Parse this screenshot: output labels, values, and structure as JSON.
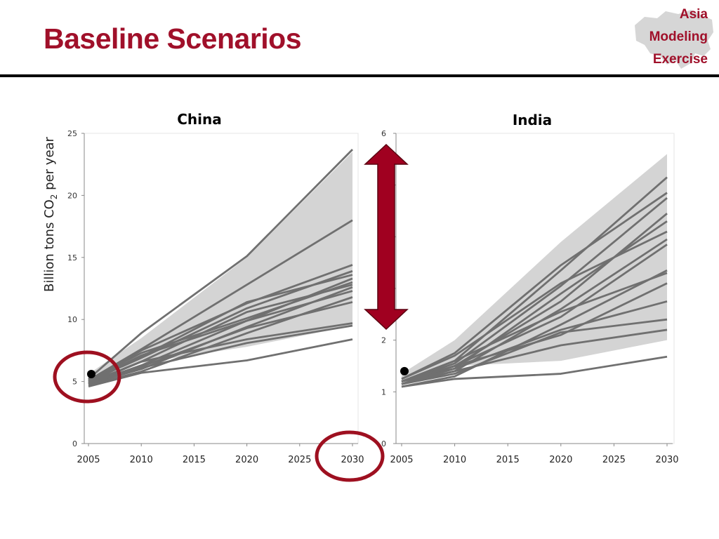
{
  "slide": {
    "title": "Baseline Scenarios",
    "logo_lines": [
      "Asia",
      "Modeling",
      "Exercise"
    ]
  },
  "colors": {
    "title": "#a0102a",
    "series_line": "#707070",
    "range_band": "#d4d4d4",
    "highlight": "#9e1020",
    "arrow_fill": "#a00020"
  },
  "annotations": {
    "double_arrow": "vertical-red-double-arrow",
    "circles": [
      "circle-china-2005-point",
      "circle-2030-tick"
    ]
  },
  "chart_data": [
    {
      "type": "line",
      "title": "China",
      "ylabel_main": "Billion tons CO",
      "ylabel_sub": "2",
      "ylabel_tail": " per year",
      "xlabel": "",
      "x": [
        2005,
        2010,
        2020,
        2030
      ],
      "xlim": [
        2005,
        2030
      ],
      "ylim": [
        0,
        25
      ],
      "xticks": [
        "2005",
        "2010",
        "2015",
        "2020",
        "2025",
        "2030"
      ],
      "yticks": [
        "0",
        "5",
        "10",
        "15",
        "20",
        "25"
      ],
      "range_band": {
        "x": [
          2005,
          2010,
          2020,
          2030
        ],
        "upper": [
          5.6,
          8.5,
          15.0,
          23.5
        ],
        "lower": [
          5.4,
          6.5,
          7.8,
          9.5
        ]
      },
      "historical_point": {
        "x": 2005,
        "y": 5.6
      },
      "series": [
        {
          "values": [
            5.2,
            8.9,
            15.1,
            23.7
          ]
        },
        {
          "values": [
            5.1,
            7.6,
            12.8,
            18.0
          ]
        },
        {
          "values": [
            5.0,
            7.5,
            11.3,
            14.4
          ]
        },
        {
          "values": [
            5.0,
            6.9,
            10.9,
            13.9
          ]
        },
        {
          "values": [
            4.9,
            7.0,
            11.4,
            13.6
          ]
        },
        {
          "values": [
            4.8,
            6.3,
            9.9,
            13.3
          ]
        },
        {
          "values": [
            5.1,
            7.3,
            10.1,
            13.0
          ]
        },
        {
          "values": [
            4.9,
            6.6,
            10.6,
            12.8
          ]
        },
        {
          "values": [
            4.8,
            6.0,
            9.4,
            12.6
          ]
        },
        {
          "values": [
            5.0,
            7.1,
            9.9,
            12.3
          ]
        },
        {
          "values": [
            4.7,
            5.8,
            8.9,
            11.8
          ]
        },
        {
          "values": [
            4.8,
            6.2,
            9.3,
            11.4
          ]
        },
        {
          "values": [
            4.8,
            6.6,
            8.4,
            9.7
          ]
        },
        {
          "values": [
            4.9,
            6.1,
            8.1,
            9.5
          ]
        },
        {
          "values": [
            4.6,
            5.7,
            6.7,
            8.4
          ]
        }
      ]
    },
    {
      "type": "line",
      "title": "India",
      "xlabel": "",
      "ylabel": "",
      "x": [
        2005,
        2010,
        2020,
        2030
      ],
      "xlim": [
        2005,
        2030
      ],
      "ylim": [
        0,
        6
      ],
      "xticks": [
        "2005",
        "2010",
        "2015",
        "2020",
        "2025",
        "2030"
      ],
      "yticks": [
        "0",
        "1",
        "2",
        "",
        "",
        "",
        "6"
      ],
      "range_band": {
        "x": [
          2005,
          2010,
          2020,
          2030
        ],
        "upper": [
          1.35,
          2.0,
          3.9,
          5.6
        ],
        "lower": [
          1.2,
          1.5,
          1.6,
          2.0
        ]
      },
      "historical_point": {
        "x": 2005,
        "y": 1.4
      },
      "series": [
        {
          "values": [
            1.2,
            1.6,
            3.35,
            5.15
          ]
        },
        {
          "values": [
            1.25,
            1.75,
            3.45,
            4.85
          ]
        },
        {
          "values": [
            1.2,
            1.55,
            3.05,
            4.75
          ]
        },
        {
          "values": [
            1.15,
            1.5,
            2.75,
            4.45
          ]
        },
        {
          "values": [
            1.2,
            1.45,
            2.9,
            4.3
          ]
        },
        {
          "values": [
            1.25,
            1.7,
            3.1,
            4.1
          ]
        },
        {
          "values": [
            1.15,
            1.4,
            2.6,
            3.95
          ]
        },
        {
          "values": [
            1.2,
            1.5,
            2.45,
            3.85
          ]
        },
        {
          "values": [
            1.1,
            1.3,
            2.3,
            3.35
          ]
        },
        {
          "values": [
            1.2,
            1.6,
            2.55,
            3.3
          ]
        },
        {
          "values": [
            1.15,
            1.45,
            2.2,
            2.75
          ]
        },
        {
          "values": [
            1.15,
            1.35,
            2.15,
            2.4
          ]
        },
        {
          "values": [
            1.2,
            1.5,
            2.1,
            3.1
          ]
        },
        {
          "values": [
            1.15,
            1.4,
            1.9,
            2.2
          ]
        },
        {
          "values": [
            1.1,
            1.25,
            1.35,
            1.68
          ]
        }
      ]
    }
  ]
}
